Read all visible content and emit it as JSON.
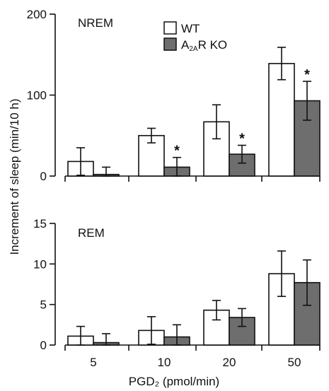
{
  "chart_data": [
    {
      "type": "bar",
      "panel_label": "NREM",
      "categories": [
        "5",
        "10",
        "20",
        "50"
      ],
      "ylim": [
        0,
        200
      ],
      "yticks": [
        0,
        100,
        200
      ],
      "series": [
        {
          "name": "WT",
          "values": [
            18,
            50,
            67,
            139
          ],
          "errors": [
            17,
            9,
            21,
            20
          ],
          "color": "#ffffff"
        },
        {
          "name": "A2AR KO",
          "values": [
            2,
            11,
            27,
            93
          ],
          "errors": [
            9,
            12,
            11,
            24
          ],
          "color": "#6e6e6e"
        }
      ],
      "significance": [
        false,
        true,
        true,
        true
      ],
      "legend_position": "top-center"
    },
    {
      "type": "bar",
      "panel_label": "REM",
      "categories": [
        "5",
        "10",
        "20",
        "50"
      ],
      "ylim": [
        0,
        15
      ],
      "yticks": [
        0,
        5,
        10,
        15
      ],
      "series": [
        {
          "name": "WT",
          "values": [
            1.1,
            1.8,
            4.3,
            8.8
          ],
          "errors": [
            1.2,
            1.7,
            1.2,
            2.8
          ],
          "color": "#ffffff"
        },
        {
          "name": "A2AR KO",
          "values": [
            0.3,
            1.0,
            3.4,
            7.7
          ],
          "errors": [
            1.1,
            1.5,
            1.1,
            2.8
          ],
          "color": "#6e6e6e"
        }
      ]
    }
  ],
  "ylabel": "Increment of sleep (min/10 h)",
  "xlabel": "PGD₂ (pmol/min)",
  "significance_marker": "*",
  "legend": {
    "wt_label": "WT",
    "ko_label_prefix": "A",
    "ko_label_sub": "2A",
    "ko_label_suffix": "R KO"
  }
}
